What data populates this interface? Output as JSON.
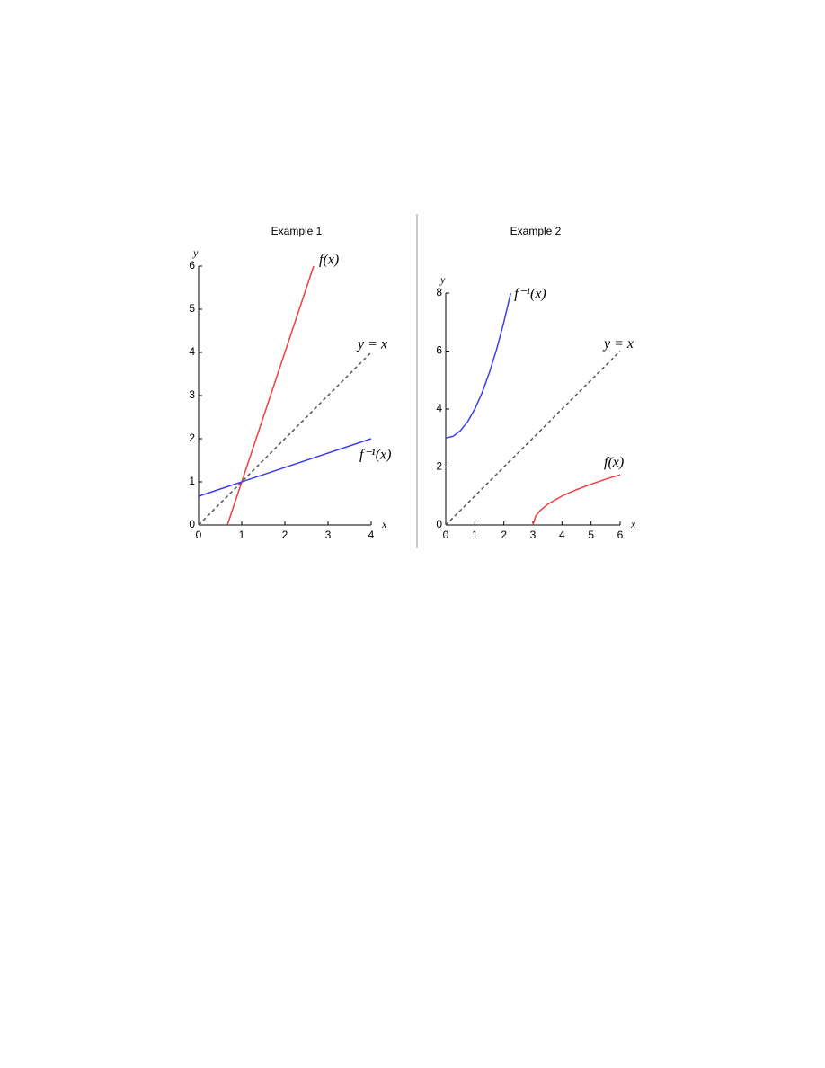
{
  "chart_data": [
    {
      "type": "line",
      "title": "Example 1",
      "x_label": "x",
      "y_label": "y",
      "xlim": [
        0,
        4
      ],
      "ylim": [
        0,
        6
      ],
      "xticks": [
        0,
        1,
        2,
        3,
        4
      ],
      "yticks": [
        0,
        1,
        2,
        3,
        4,
        5,
        6
      ],
      "series": [
        {
          "name": "f(x)",
          "color": "#f03c3c",
          "style": "solid",
          "x": [
            0.667,
            2.667
          ],
          "values": [
            0,
            6
          ]
        },
        {
          "name": "y = x",
          "color": "#555555",
          "style": "dashed",
          "x": [
            0,
            4
          ],
          "values": [
            0,
            4
          ]
        },
        {
          "name": "f⁻¹(x)",
          "color": "#3c3cf0",
          "style": "solid",
          "x": [
            0,
            4
          ],
          "values": [
            0.667,
            2
          ]
        }
      ]
    },
    {
      "type": "line",
      "title": "Example 2",
      "x_label": "x",
      "y_label": "y",
      "xlim": [
        0,
        6
      ],
      "ylim": [
        0,
        8
      ],
      "xticks": [
        0,
        1,
        2,
        3,
        4,
        5,
        6
      ],
      "yticks": [
        0,
        2,
        4,
        6,
        8
      ],
      "series": [
        {
          "name": "f⁻¹(x)",
          "color": "#3c3cf0",
          "style": "solid",
          "x": [
            0,
            0.25,
            0.5,
            0.75,
            1,
            1.25,
            1.5,
            1.75,
            2,
            2.236
          ],
          "values": [
            3,
            3.06,
            3.25,
            3.56,
            4,
            4.56,
            5.25,
            6.06,
            7,
            8
          ]
        },
        {
          "name": "y = x",
          "color": "#555555",
          "style": "dashed",
          "x": [
            0,
            6
          ],
          "values": [
            0,
            6
          ]
        },
        {
          "name": "f(x)",
          "color": "#f03c3c",
          "style": "solid",
          "x": [
            3,
            3.1,
            3.25,
            3.5,
            4,
            4.5,
            5,
            5.5,
            6
          ],
          "values": [
            0,
            0.32,
            0.5,
            0.71,
            1,
            1.22,
            1.41,
            1.58,
            1.73
          ]
        }
      ]
    }
  ]
}
